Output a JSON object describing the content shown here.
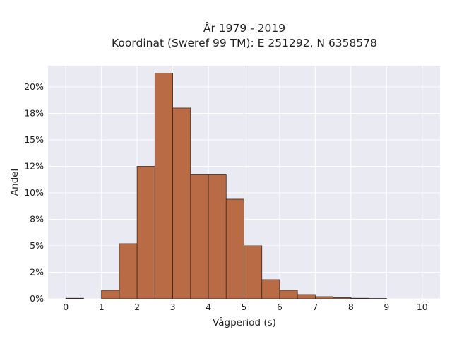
{
  "chart_data": {
    "type": "bar",
    "title_line1": "År 1979 - 2019",
    "title_line2": "Koordinat (Sweref 99 TM): E 251292, N 6358578",
    "xlabel": "Vågperiod (s)",
    "ylabel": "Andel",
    "bin_width": 0.5,
    "bins": [
      {
        "x0": 0.0,
        "value": 0.05
      },
      {
        "x0": 0.5,
        "value": 0.0
      },
      {
        "x0": 1.0,
        "value": 0.8
      },
      {
        "x0": 1.5,
        "value": 5.2
      },
      {
        "x0": 2.0,
        "value": 12.5
      },
      {
        "x0": 2.5,
        "value": 21.3
      },
      {
        "x0": 3.0,
        "value": 18.0
      },
      {
        "x0": 3.5,
        "value": 11.7
      },
      {
        "x0": 4.0,
        "value": 11.7
      },
      {
        "x0": 4.5,
        "value": 9.4
      },
      {
        "x0": 5.0,
        "value": 5.0
      },
      {
        "x0": 5.5,
        "value": 1.8
      },
      {
        "x0": 6.0,
        "value": 0.8
      },
      {
        "x0": 6.5,
        "value": 0.4
      },
      {
        "x0": 7.0,
        "value": 0.2
      },
      {
        "x0": 7.5,
        "value": 0.1
      },
      {
        "x0": 8.0,
        "value": 0.05
      },
      {
        "x0": 8.5,
        "value": 0.03
      }
    ],
    "xlim": [
      -0.5,
      10.5
    ],
    "ylim": [
      0,
      22
    ],
    "x_ticks": [
      0,
      1,
      2,
      3,
      4,
      5,
      6,
      7,
      8,
      9,
      10
    ],
    "x_tick_labels": [
      "0",
      "1",
      "2",
      "3",
      "4",
      "5",
      "6",
      "7",
      "8",
      "9",
      "10"
    ],
    "y_ticks": [
      0,
      2.5,
      5,
      7.5,
      10,
      12.5,
      15,
      17.5,
      20
    ],
    "y_tick_labels": [
      "0%",
      "2%",
      "5%",
      "8%",
      "10%",
      "12%",
      "15%",
      "18%",
      "20%"
    ],
    "grid": true,
    "bar_color": "#b86b44",
    "bar_edge_color": "#3a2a20",
    "plot_background": "#eaeaf2",
    "grid_color": "#ffffff"
  }
}
